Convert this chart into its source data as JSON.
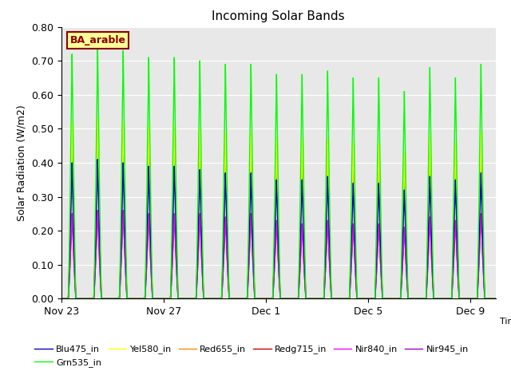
{
  "title": "Incoming Solar Bands",
  "xlabel": "Time",
  "ylabel": "Solar Radiation (W/m2)",
  "ylim": [
    0.0,
    0.8
  ],
  "yticks": [
    0.0,
    0.1,
    0.2,
    0.3,
    0.4,
    0.5,
    0.6,
    0.7,
    0.8
  ],
  "background_color": "#e8e8e8",
  "legend_label": "BA_arable",
  "series": [
    {
      "name": "Blu475_in",
      "color": "#0000cc",
      "lw": 1.0
    },
    {
      "name": "Grn535_in",
      "color": "#00ff00",
      "lw": 1.0
    },
    {
      "name": "Yel580_in",
      "color": "#ffff00",
      "lw": 1.0
    },
    {
      "name": "Red655_in",
      "color": "#ff8800",
      "lw": 1.0
    },
    {
      "name": "Redg715_in",
      "color": "#cc0000",
      "lw": 1.0
    },
    {
      "name": "Nir840_in",
      "color": "#ff00ff",
      "lw": 1.0
    },
    {
      "name": "Nir945_in",
      "color": "#9900cc",
      "lw": 1.0
    }
  ],
  "num_days": 17,
  "xtick_labels": [
    "Nov 23",
    "Nov 27",
    "Dec 1",
    "Dec 5",
    "Dec 9"
  ],
  "xtick_day_offsets": [
    0,
    4,
    8,
    12,
    16
  ],
  "peaks_per_day": {
    "Grn535_in": [
      0.72,
      0.74,
      0.73,
      0.71,
      0.71,
      0.7,
      0.69,
      0.69,
      0.66,
      0.66,
      0.67,
      0.65,
      0.65,
      0.61,
      0.68,
      0.65,
      0.69
    ],
    "Yel580_in": [
      0.52,
      0.53,
      0.52,
      0.51,
      0.51,
      0.5,
      0.49,
      0.49,
      0.47,
      0.47,
      0.47,
      0.46,
      0.46,
      0.43,
      0.48,
      0.46,
      0.49
    ],
    "Red655_in": [
      0.48,
      0.49,
      0.48,
      0.47,
      0.47,
      0.46,
      0.45,
      0.45,
      0.43,
      0.43,
      0.44,
      0.42,
      0.42,
      0.4,
      0.44,
      0.42,
      0.45
    ],
    "Redg715_in": [
      0.43,
      0.45,
      0.44,
      0.43,
      0.43,
      0.42,
      0.4,
      0.41,
      0.39,
      0.39,
      0.4,
      0.38,
      0.38,
      0.36,
      0.4,
      0.38,
      0.41
    ],
    "Nir840_in": [
      0.25,
      0.26,
      0.26,
      0.25,
      0.25,
      0.25,
      0.24,
      0.25,
      0.23,
      0.22,
      0.23,
      0.22,
      0.22,
      0.21,
      0.24,
      0.23,
      0.25
    ],
    "Nir945_in": [
      0.25,
      0.26,
      0.26,
      0.25,
      0.25,
      0.25,
      0.24,
      0.25,
      0.23,
      0.22,
      0.23,
      0.22,
      0.22,
      0.21,
      0.24,
      0.23,
      0.25
    ],
    "Blu475_in": [
      0.4,
      0.41,
      0.4,
      0.39,
      0.39,
      0.38,
      0.37,
      0.37,
      0.35,
      0.35,
      0.36,
      0.34,
      0.34,
      0.32,
      0.36,
      0.35,
      0.37
    ]
  }
}
